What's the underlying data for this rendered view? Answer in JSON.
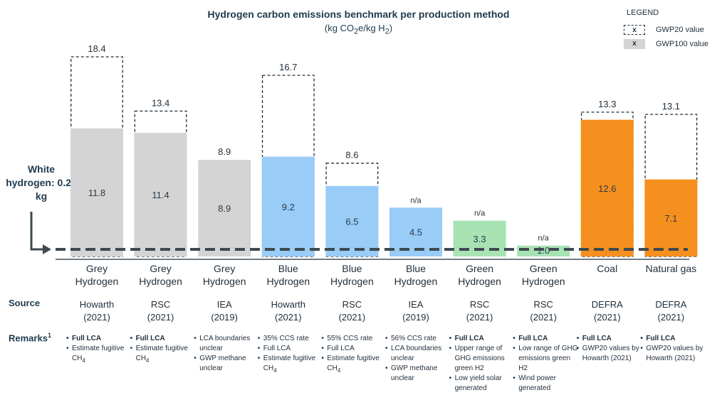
{
  "chart_data": {
    "type": "bar",
    "title": "Hydrogen carbon emissions benchmark per production method",
    "subtitle_parts": [
      "(kg CO",
      "2",
      "e/kg H",
      "2",
      ")"
    ],
    "ylim": [
      0,
      20
    ],
    "reference_line": {
      "value": 0.24,
      "label": "White hydrogen: 0.24 kg"
    },
    "legend": {
      "title": "LEGEND",
      "gwp20": {
        "marker": "x",
        "label": "GWP20 value"
      },
      "gwp100": {
        "marker": "x",
        "label": "GWP100 value"
      }
    },
    "categories": [
      {
        "lines": [
          "Grey",
          "Hydrogen"
        ],
        "source": [
          "Howarth",
          "(2021)"
        ],
        "gwp100": 11.8,
        "gwp100_label": "11.8",
        "gwp20": 18.4,
        "gwp20_label": "18.4",
        "color": "#d4d4d4"
      },
      {
        "lines": [
          "Grey",
          "Hydrogen"
        ],
        "source": [
          "RSC",
          "(2021)"
        ],
        "gwp100": 11.4,
        "gwp100_label": "11.4",
        "gwp20": 13.4,
        "gwp20_label": "13.4",
        "color": "#d4d4d4"
      },
      {
        "lines": [
          "Grey",
          "Hydrogen"
        ],
        "source": [
          "IEA",
          "(2019)"
        ],
        "gwp100": 8.9,
        "gwp100_label": "8.9",
        "gwp20": null,
        "gwp20_label": "8.9",
        "color": "#d4d4d4"
      },
      {
        "lines": [
          "Blue",
          "Hydrogen"
        ],
        "source": [
          "Howarth",
          "(2021)"
        ],
        "gwp100": 9.2,
        "gwp100_label": "9.2",
        "gwp20": 16.7,
        "gwp20_label": "16.7",
        "color": "#99ccf7"
      },
      {
        "lines": [
          "Blue",
          "Hydrogen"
        ],
        "source": [
          "RSC",
          "(2021)"
        ],
        "gwp100": 6.5,
        "gwp100_label": "6.5",
        "gwp20": 8.6,
        "gwp20_label": "8.6",
        "color": "#99ccf7"
      },
      {
        "lines": [
          "Blue",
          "Hydrogen"
        ],
        "source": [
          "IEA",
          "(2019)"
        ],
        "gwp100": 4.5,
        "gwp100_label": "4.5",
        "gwp20": null,
        "gwp20_label": "n/a",
        "color": "#99ccf7"
      },
      {
        "lines": [
          "Green",
          "Hydrogen"
        ],
        "source": [
          "RSC",
          "(2021)"
        ],
        "gwp100": 3.3,
        "gwp100_label": "3.3",
        "gwp20": null,
        "gwp20_label": "n/a",
        "color": "#a8e3b4"
      },
      {
        "lines": [
          "Green",
          "Hydrogen"
        ],
        "source": [
          "RSC",
          "(2021)"
        ],
        "gwp100": 1.0,
        "gwp100_label": "1.0",
        "gwp20": null,
        "gwp20_label": "n/a",
        "color": "#a8e3b4"
      },
      {
        "lines": [
          "Coal"
        ],
        "source": [
          "DEFRA",
          "(2021)"
        ],
        "gwp100": 12.6,
        "gwp100_label": "12.6",
        "gwp20": 13.3,
        "gwp20_label": "13.3",
        "color": "#f5901e"
      },
      {
        "lines": [
          "Natural gas"
        ],
        "source": [
          "DEFRA",
          "(2021)"
        ],
        "gwp100": 7.1,
        "gwp100_label": "7.1",
        "gwp20": 13.1,
        "gwp20_label": "13.1",
        "color": "#f5901e"
      }
    ]
  },
  "rows": {
    "source": "Source",
    "remarks": "Remarks",
    "remarks_sup": "1"
  },
  "remarks": [
    [
      {
        "text": "Full LCA",
        "bold": true
      },
      {
        "text": "Estimate fugitive CH",
        "sub": "4"
      }
    ],
    [
      {
        "text": "Full LCA",
        "bold": true
      },
      {
        "text": "Estimate fugitive CH",
        "sub": "4"
      }
    ],
    [
      {
        "text": "LCA boundaries unclear"
      },
      {
        "text": "GWP methane unclear"
      }
    ],
    [
      {
        "text": "35% CCS rate"
      },
      {
        "text": "Full LCA"
      },
      {
        "text": "Estimate fugitive CH",
        "sub": "4"
      }
    ],
    [
      {
        "text": "55% CCS rate"
      },
      {
        "text": "Full LCA"
      },
      {
        "text": "Estimate fugitive CH",
        "sub": "4"
      }
    ],
    [
      {
        "text": "56% CCS rate"
      },
      {
        "text": "LCA boundaries unclear"
      },
      {
        "text": "GWP methane unclear"
      }
    ],
    [
      {
        "text": "Full LCA",
        "bold": true
      },
      {
        "text": "Upper range of GHG emissions green H2"
      },
      {
        "text": "Low yield solar generated"
      }
    ],
    [
      {
        "text": "Full LCA",
        "bold": true
      },
      {
        "text": "Low range of GHG emissions green H2"
      },
      {
        "text": "Wind power generated"
      }
    ],
    [
      {
        "text": "Full LCA",
        "bold": true
      },
      {
        "text": "GWP20 values by Howarth (2021)"
      }
    ],
    [
      {
        "text": "Full LCA",
        "bold": true
      },
      {
        "text": "GWP20 values by Howarth (2021)"
      }
    ]
  ]
}
